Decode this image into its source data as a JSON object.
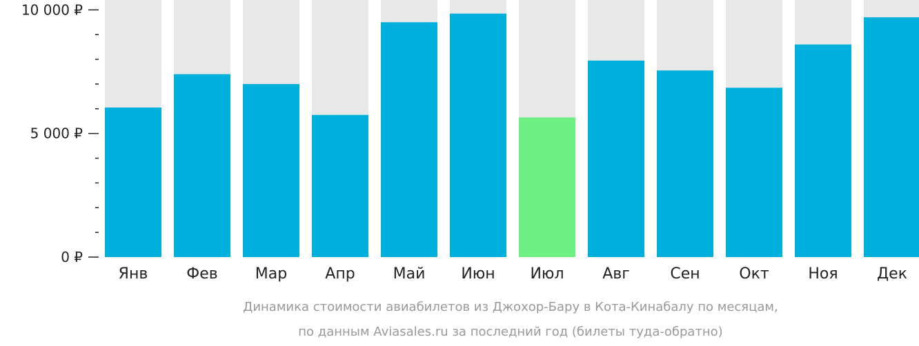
{
  "chart_data": {
    "type": "bar",
    "categories": [
      "Янв",
      "Фев",
      "Мар",
      "Апр",
      "Май",
      "Июн",
      "Июл",
      "Авг",
      "Сен",
      "Окт",
      "Ноя",
      "Дек"
    ],
    "values": [
      6050,
      7400,
      7000,
      5750,
      9500,
      9850,
      5650,
      7950,
      7550,
      6850,
      8600,
      9700
    ],
    "ylim": [
      0,
      10400
    ],
    "yticks": [
      {
        "value": 0,
        "label": "0 ₽"
      },
      {
        "value": 5000,
        "label": "5 000 ₽"
      },
      {
        "value": 10000,
        "label": "10 000 ₽"
      }
    ],
    "minor_tick_step": 1000,
    "highlight_index": 6,
    "colors": {
      "bar": "#00b0dc",
      "highlight": "#6cf084",
      "background_bar": "#e8e8e8",
      "axis": "#222222"
    },
    "caption_lines": [
      "Динамика стоимости авиабилетов из Джохор-Бару в Кота-Кинабалу по месяцам,",
      "по данным Aviasales.ru за последний год (билеты туда-обратно)"
    ]
  }
}
